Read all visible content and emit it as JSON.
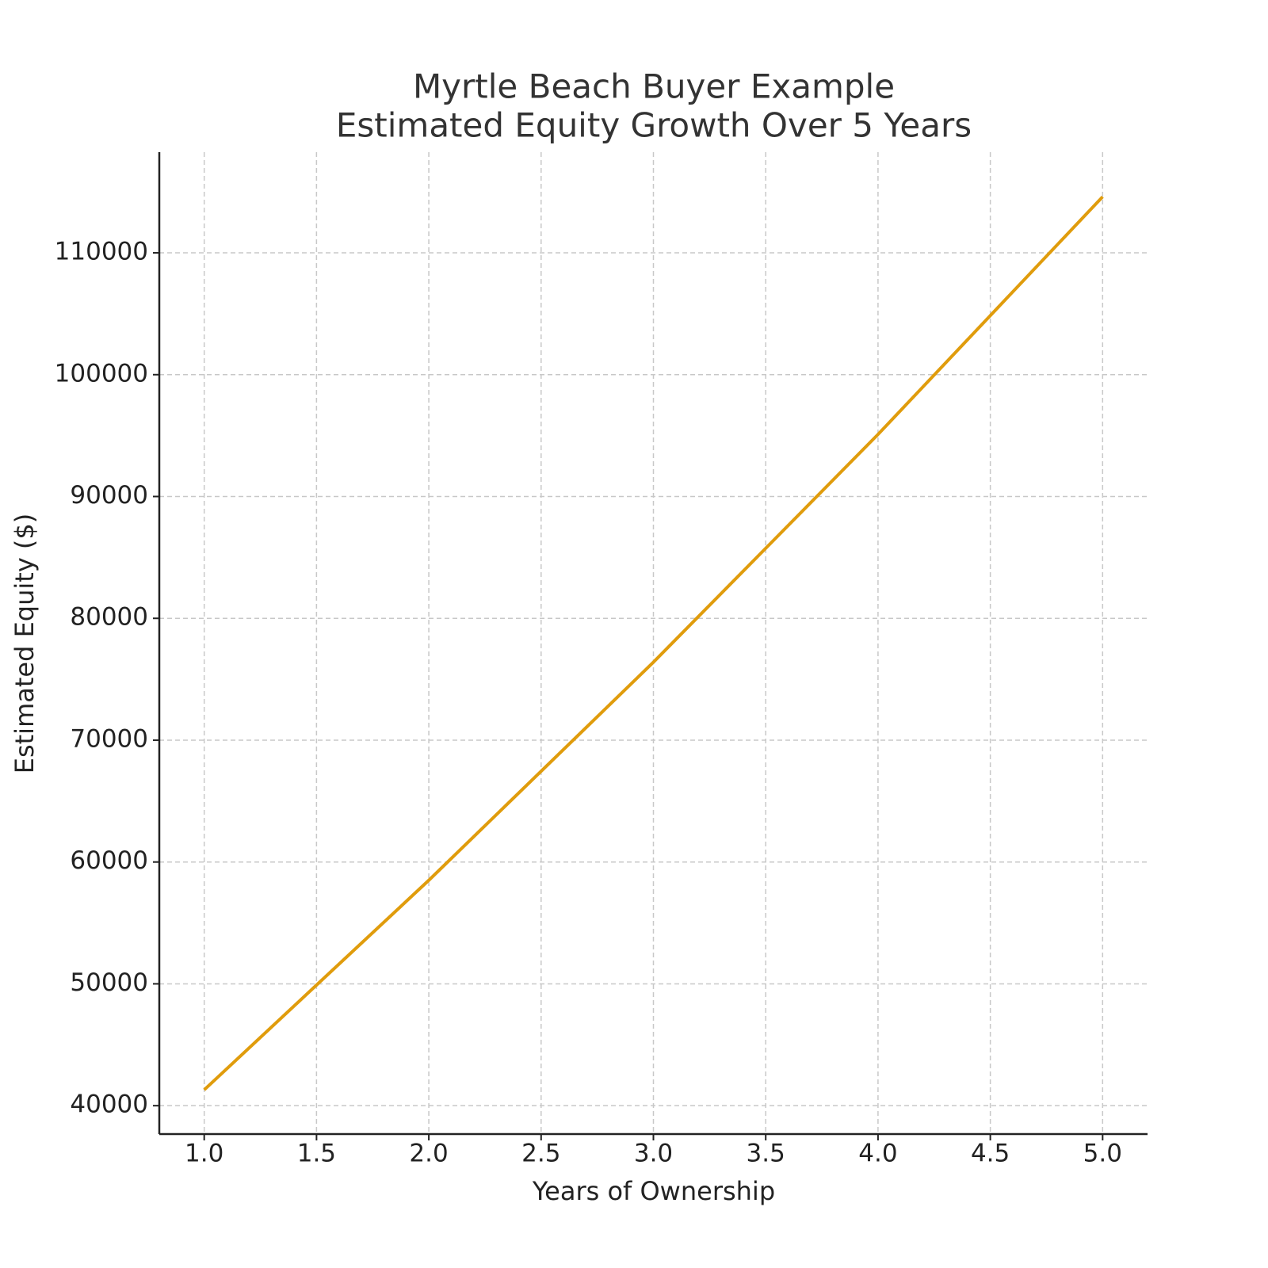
{
  "chart_data": {
    "type": "line",
    "title": "Myrtle Beach Buyer Example",
    "subtitle": "Estimated Equity Growth Over 5 Years",
    "x_label": "Years of Ownership",
    "y_label": "Estimated Equity ($)",
    "x": [
      1,
      2,
      3,
      4,
      5
    ],
    "series": [
      {
        "name": "Estimated Equity",
        "color": "#e09c0c",
        "values": [
          41300,
          58500,
          76400,
          95100,
          114600
        ]
      }
    ],
    "xlim": [
      0.8,
      5.2
    ],
    "ylim": [
      37670,
      118263
    ],
    "xticks": [
      {
        "value": 1,
        "label": "1.0"
      },
      1.5,
      {
        "value": 2,
        "label": "2.0"
      },
      2.5,
      {
        "value": 3,
        "label": "3.0"
      },
      3.5,
      {
        "value": 4,
        "label": "4.0"
      },
      4.5,
      {
        "value": 5,
        "label": "5.0"
      }
    ],
    "yticks": [
      40000,
      50000,
      60000,
      70000,
      80000,
      90000,
      100000,
      110000
    ],
    "grid": true
  }
}
